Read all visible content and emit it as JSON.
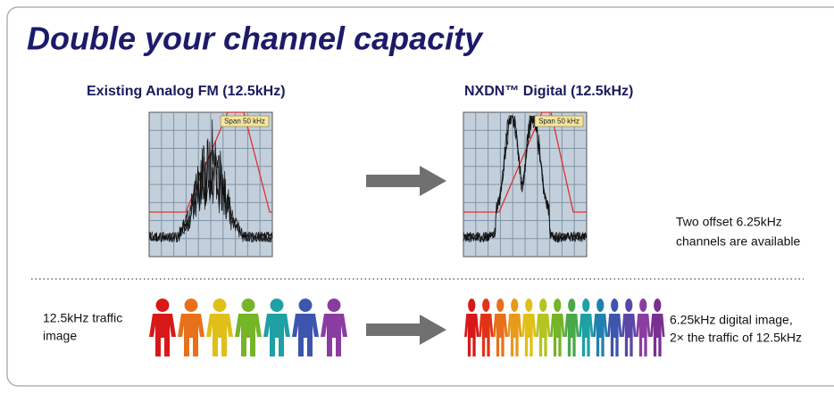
{
  "header": {
    "title": "Double your channel capacity"
  },
  "analog": {
    "title": "Existing Analog FM (12.5kHz)",
    "span_label": "Span 50 kHz"
  },
  "digital": {
    "title": "NXDN™ Digital (12.5kHz)",
    "span_label": "Span 50 kHz",
    "note": [
      "Two offset 6.25kHz",
      "channels are available"
    ]
  },
  "traffic": {
    "analog_label": [
      "12.5kHz traffic",
      "image"
    ],
    "digital_label": [
      "6.25kHz digital image,",
      "2× the traffic of 12.5kHz"
    ]
  }
}
